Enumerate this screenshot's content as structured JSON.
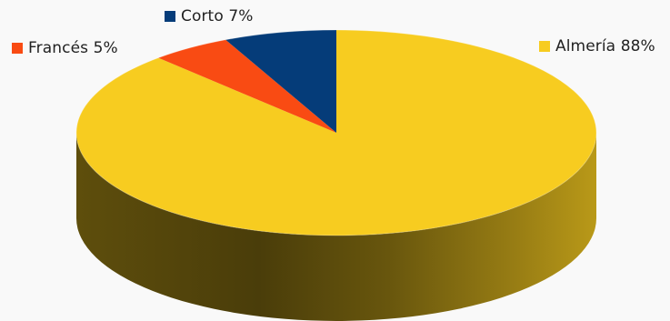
{
  "chart_data": {
    "type": "pie",
    "style": "3d",
    "start_position": "top",
    "direction": "clockwise",
    "slices": [
      {
        "label": "Almería",
        "value": 88,
        "display": "Almería 88%",
        "color": "#f7cc20"
      },
      {
        "label": "Francés",
        "value": 5,
        "display": "Francés 5%",
        "color": "#f94b13"
      },
      {
        "label": "Corto",
        "value": 7,
        "display": "Corto 7%",
        "color": "#053c79"
      }
    ]
  },
  "legend": {
    "entries": [
      {
        "text": "Corto 7%",
        "color": "#053c79"
      },
      {
        "text": "Francés 5%",
        "color": "#f94b13"
      },
      {
        "text": "Almería 88%",
        "color": "#f7cc20"
      }
    ]
  }
}
